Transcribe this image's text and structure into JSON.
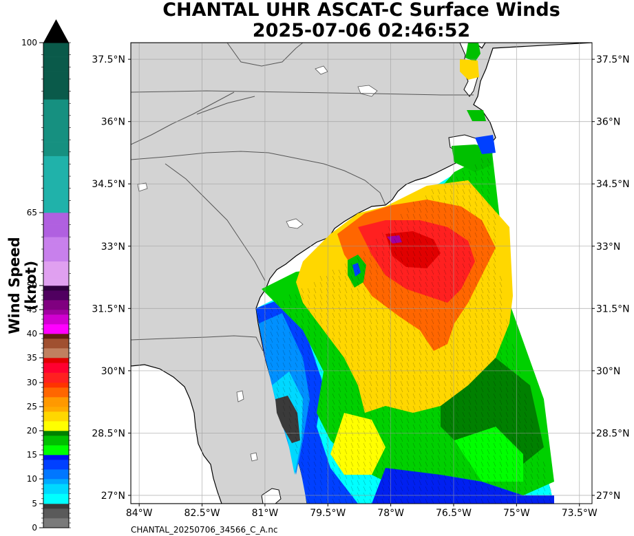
{
  "header": {
    "title_line1": "CHANTAL UHR ASCAT-C Surface Winds",
    "title_line2": "2025-07-06 02:46:52"
  },
  "colorbar": {
    "label": "Wind Speed (knot)",
    "min": 0,
    "max": 100,
    "ticks": [
      "0",
      "5",
      "10",
      "15",
      "20",
      "25",
      "30",
      "35",
      "40",
      "45",
      "50",
      "65",
      "100"
    ],
    "tick_values": [
      0,
      5,
      10,
      15,
      20,
      25,
      30,
      35,
      40,
      45,
      50,
      65,
      100
    ],
    "extend": "max",
    "bands": [
      {
        "from": 0,
        "to": 5,
        "colors": [
          "#7a7a7a",
          "#5a5a5a",
          "#3a3a3a"
        ]
      },
      {
        "from": 5,
        "to": 10,
        "colors": [
          "#00ffff",
          "#00d8ff",
          "#00aaff"
        ]
      },
      {
        "from": 10,
        "to": 15,
        "colors": [
          "#0077ff",
          "#0040ff",
          "#0010f0"
        ]
      },
      {
        "from": 15,
        "to": 20,
        "colors": [
          "#00ff00",
          "#00c000",
          "#008000"
        ]
      },
      {
        "from": 20,
        "to": 25,
        "colors": [
          "#ffff00",
          "#ffd700",
          "#ffaa00"
        ]
      },
      {
        "from": 25,
        "to": 30,
        "colors": [
          "#ff9900",
          "#ff6600",
          "#ff3300"
        ]
      },
      {
        "from": 30,
        "to": 35,
        "colors": [
          "#ff2020",
          "#ff0030",
          "#e00000"
        ]
      },
      {
        "from": 35,
        "to": 40,
        "colors": [
          "#c08060",
          "#a05030",
          "#602010"
        ]
      },
      {
        "from": 40,
        "to": 45,
        "colors": [
          "#ff00ff",
          "#d000d0",
          "#a000a0"
        ]
      },
      {
        "from": 45,
        "to": 50,
        "colors": [
          "#800080",
          "#500060",
          "#300040"
        ]
      },
      {
        "from": 50,
        "to": 65,
        "colors": [
          "#e0a0f0",
          "#c880ec",
          "#b060e0"
        ]
      },
      {
        "from": 65,
        "to": 100,
        "colors": [
          "#20b2aa",
          "#169080",
          "#0a5a4a"
        ]
      }
    ]
  },
  "map": {
    "lon_ticks": [
      "84°W",
      "82.5°W",
      "81°W",
      "79.5°W",
      "78°W",
      "76.5°W",
      "75°W",
      "73.5°W"
    ],
    "lon_values": [
      -84,
      -82.5,
      -81,
      -79.5,
      -78,
      -76.5,
      -75,
      -73.5
    ],
    "lat_ticks": [
      "27°N",
      "28.5°N",
      "30°N",
      "31.5°N",
      "33°N",
      "34.5°N",
      "36°N",
      "37.5°N"
    ],
    "lat_values": [
      27,
      28.5,
      30,
      31.5,
      33,
      34.5,
      36,
      37.5
    ],
    "lon_range": [
      -84.2,
      -73.2
    ],
    "lat_range": [
      26.8,
      37.9
    ],
    "land_color": "#d3d3d3",
    "ocean_color": "#ffffff",
    "grid": true
  },
  "footer": {
    "filename": "CHANTAL_20250706_34566_C_A.nc"
  }
}
